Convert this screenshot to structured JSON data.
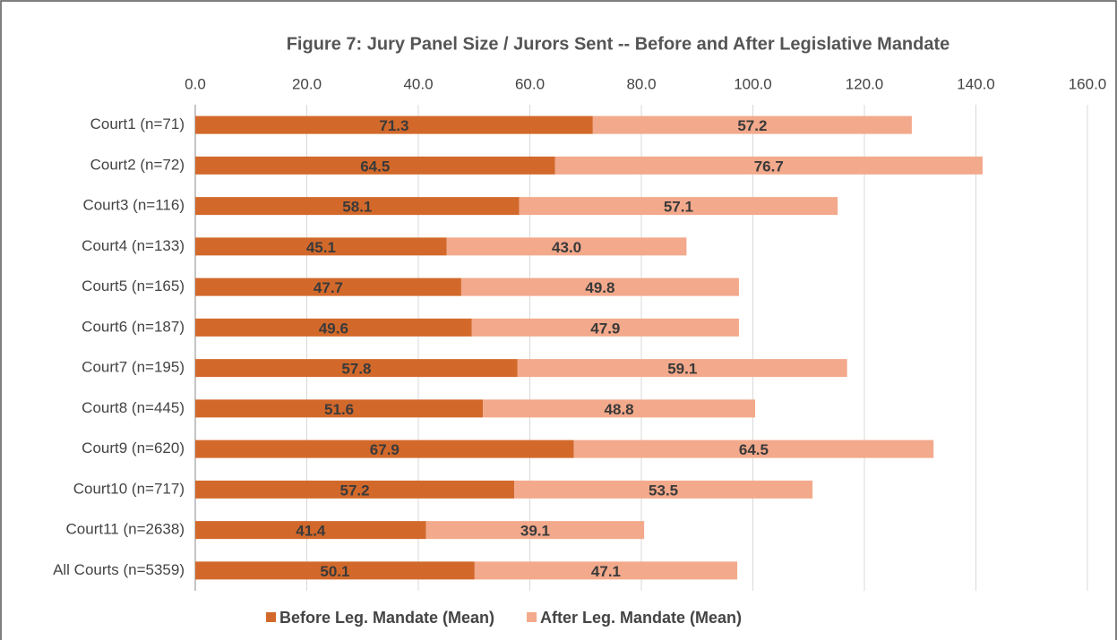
{
  "chart_data": {
    "type": "stacked_barh",
    "title": "Figure 7:  Jury Panel Size / Jurors Sent -- Before and After Legislative Mandate",
    "categories": [
      "Court1 (n=71)",
      "Court2 (n=72)",
      "Court3 (n=116)",
      "Court4 (n=133)",
      "Court5 (n=165)",
      "Court6 (n=187)",
      "Court7 (n=195)",
      "Court8 (n=445)",
      "Court9 (n=620)",
      "Court10 (n=717)",
      "Court11 (n=2638)",
      "All Courts (n=5359)"
    ],
    "series": [
      {
        "name": "Before Leg. Mandate (Mean)",
        "color": "#d2692b",
        "values": [
          71.3,
          64.5,
          58.1,
          45.1,
          47.7,
          49.6,
          57.8,
          51.6,
          67.9,
          57.2,
          41.4,
          50.1
        ],
        "value_labels": [
          "71.3",
          "64.5",
          "58.1",
          "45.1",
          "47.7",
          "49.6",
          "57.8",
          "51.6",
          "67.9",
          "57.2",
          "41.4",
          "50.1"
        ]
      },
      {
        "name": "After Leg. Mandate (Mean)",
        "color": "#f3a98b",
        "values": [
          57.2,
          76.7,
          57.1,
          43.0,
          49.8,
          47.9,
          59.1,
          48.8,
          64.5,
          53.5,
          39.1,
          47.1
        ],
        "value_labels": [
          "57.2",
          "76.7",
          "57.1",
          "43.0",
          "49.8",
          "47.9",
          "59.1",
          "48.8",
          "64.5",
          "53.5",
          "39.1",
          "47.1"
        ]
      }
    ],
    "xlim": [
      0,
      160
    ],
    "xticks": [
      {
        "value": 0,
        "label": "0.0"
      },
      {
        "value": 20,
        "label": "20.0"
      },
      {
        "value": 40,
        "label": "40.0"
      },
      {
        "value": 60,
        "label": "60.0"
      },
      {
        "value": 80,
        "label": "80.0"
      },
      {
        "value": 100,
        "label": "100.0"
      },
      {
        "value": 120,
        "label": "120.0"
      },
      {
        "value": 140,
        "label": "140.0"
      },
      {
        "value": 160,
        "label": "160.0"
      }
    ],
    "grid": true,
    "legend": "bottom"
  }
}
